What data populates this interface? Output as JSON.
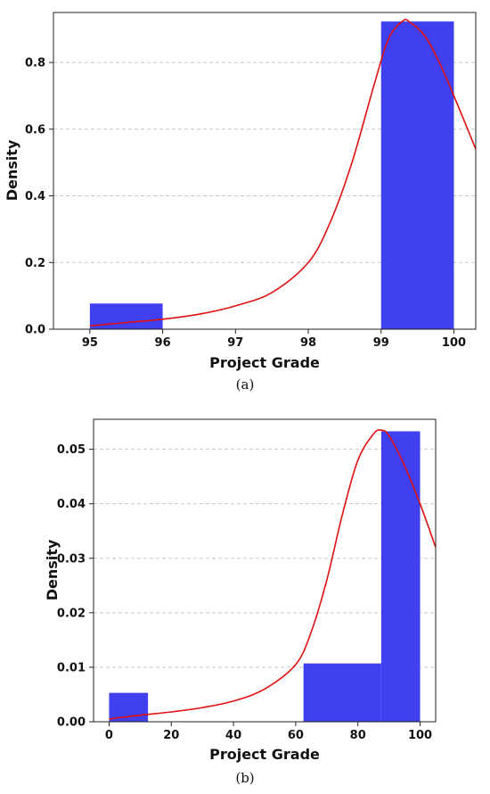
{
  "chart_data": [
    {
      "type": "bar",
      "panel_label": "(a)",
      "xlabel": "Project Grade",
      "ylabel": "Density",
      "xlim": [
        94.5,
        100.3
      ],
      "ylim": [
        0,
        0.95
      ],
      "xticks": [
        95,
        96,
        97,
        98,
        99,
        100
      ],
      "yticks": [
        0.0,
        0.2,
        0.4,
        0.6,
        0.8
      ],
      "ytick_format": 1,
      "grid": "horizontal-dashed",
      "bar_color": "#4040f0",
      "curve_color": "#e01010",
      "bars": [
        {
          "x0": 95,
          "x1": 96,
          "density": 0.077
        },
        {
          "x0": 99,
          "x1": 100,
          "density": 0.923
        }
      ],
      "density_curve": {
        "x": [
          95,
          95.5,
          96,
          96.5,
          97,
          97.5,
          98,
          98.3,
          98.6,
          98.9,
          99.1,
          99.3,
          99.4,
          99.6,
          99.8,
          100,
          100.3
        ],
        "y": [
          0.01,
          0.02,
          0.03,
          0.045,
          0.07,
          0.11,
          0.2,
          0.32,
          0.5,
          0.73,
          0.87,
          0.925,
          0.92,
          0.88,
          0.8,
          0.7,
          0.54
        ]
      }
    },
    {
      "type": "bar",
      "panel_label": "(b)",
      "xlabel": "Project Grade",
      "ylabel": "Density",
      "xlim": [
        -5,
        105
      ],
      "ylim": [
        0,
        0.0555
      ],
      "xticks": [
        0,
        20,
        40,
        60,
        80,
        100
      ],
      "yticks": [
        0.0,
        0.01,
        0.02,
        0.03,
        0.04,
        0.05
      ],
      "ytick_format": 2,
      "grid": "horizontal-dashed",
      "bar_color": "#4040f0",
      "curve_color": "#e01010",
      "bars": [
        {
          "x0": 0,
          "x1": 12.5,
          "density": 0.0053
        },
        {
          "x0": 62.5,
          "x1": 87.5,
          "density": 0.0107
        },
        {
          "x0": 87.5,
          "x1": 100,
          "density": 0.0533
        }
      ],
      "density_curve": {
        "x": [
          0,
          10,
          20,
          30,
          40,
          50,
          60,
          65,
          70,
          75,
          80,
          85,
          87.5,
          90,
          95,
          100,
          105
        ],
        "y": [
          0.0005,
          0.0012,
          0.0018,
          0.0026,
          0.0038,
          0.006,
          0.0105,
          0.0165,
          0.026,
          0.038,
          0.048,
          0.0528,
          0.0535,
          0.0525,
          0.047,
          0.04,
          0.032
        ]
      }
    }
  ]
}
